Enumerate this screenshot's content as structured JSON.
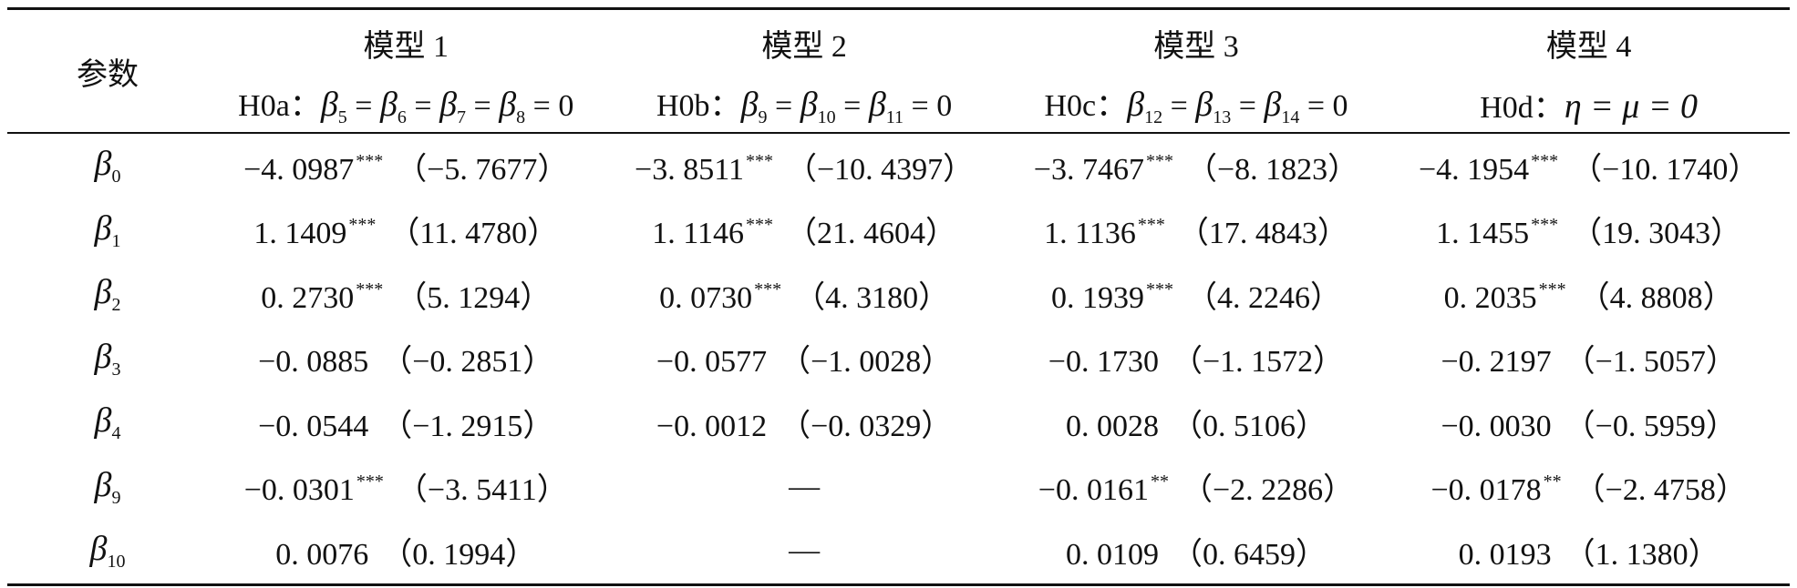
{
  "table": {
    "param_header": "参数",
    "models": [
      {
        "title": "模型 1",
        "hyp_label": "H0a：",
        "hyp_terms": [
          "5",
          "6",
          "7",
          "8"
        ],
        "hyp_symbol": "β",
        "hyp_eq": "= 0"
      },
      {
        "title": "模型 2",
        "hyp_label": "H0b：",
        "hyp_terms": [
          "9",
          "10",
          "11"
        ],
        "hyp_symbol": "β",
        "hyp_eq": "= 0"
      },
      {
        "title": "模型 3",
        "hyp_label": "H0c：",
        "hyp_terms": [
          "12",
          "13",
          "14"
        ],
        "hyp_symbol": "β",
        "hyp_eq": "= 0"
      },
      {
        "title": "模型 4",
        "hyp_label": "H0d：",
        "hyp_greek": "η = μ = 0"
      }
    ],
    "rows": [
      {
        "sym": "β",
        "sub": "0",
        "cells": [
          {
            "coef": "−4. 0987",
            "stars": "***",
            "t": "（−5. 7677）"
          },
          {
            "coef": "−3. 8511",
            "stars": "***",
            "t": "（−10. 4397）"
          },
          {
            "coef": "−3. 7467",
            "stars": "***",
            "t": "（−8. 1823）"
          },
          {
            "coef": "−4. 1954",
            "stars": "***",
            "t": "（−10. 1740）"
          }
        ]
      },
      {
        "sym": "β",
        "sub": "1",
        "cells": [
          {
            "coef": "1. 1409",
            "stars": "***",
            "t": "（11. 4780）"
          },
          {
            "coef": "1. 1146",
            "stars": "***",
            "t": "（21. 4604）"
          },
          {
            "coef": "1. 1136",
            "stars": "***",
            "t": "（17. 4843）"
          },
          {
            "coef": "1. 1455",
            "stars": "***",
            "t": "（19. 3043）"
          }
        ]
      },
      {
        "sym": "β",
        "sub": "2",
        "cells": [
          {
            "coef": "0. 2730",
            "stars": "***",
            "t": "（5. 1294）"
          },
          {
            "coef": "0. 0730",
            "stars": "***",
            "t": "（4. 3180）"
          },
          {
            "coef": "0. 1939",
            "stars": "***",
            "t": "（4. 2246）"
          },
          {
            "coef": "0. 2035",
            "stars": "***",
            "t": "（4. 8808）"
          }
        ]
      },
      {
        "sym": "β",
        "sub": "3",
        "cells": [
          {
            "coef": "−0. 0885",
            "stars": "",
            "t": "（−0. 2851）"
          },
          {
            "coef": "−0. 0577",
            "stars": "",
            "t": "（−1. 0028）"
          },
          {
            "coef": "−0. 1730",
            "stars": "",
            "t": "（−1. 1572）"
          },
          {
            "coef": "−0. 2197",
            "stars": "",
            "t": "（−1. 5057）"
          }
        ]
      },
      {
        "sym": "β",
        "sub": "4",
        "cells": [
          {
            "coef": "−0. 0544",
            "stars": "",
            "t": "（−1. 2915）"
          },
          {
            "coef": "−0. 0012",
            "stars": "",
            "t": "（−0. 0329）"
          },
          {
            "coef": "0. 0028",
            "stars": "",
            "t": "（0. 5106）"
          },
          {
            "coef": "−0. 0030",
            "stars": "",
            "t": "（−0. 5959）"
          }
        ]
      },
      {
        "sym": "β",
        "sub": "9",
        "cells": [
          {
            "coef": "−0. 0301",
            "stars": "***",
            "t": "（−3. 5411）"
          },
          {
            "coef": "—",
            "stars": "",
            "t": ""
          },
          {
            "coef": "−0. 0161",
            "stars": "**",
            "t": "（−2. 2286）"
          },
          {
            "coef": "−0. 0178",
            "stars": "**",
            "t": "（−2. 4758）"
          }
        ]
      },
      {
        "sym": "β",
        "sub": "10",
        "cells": [
          {
            "coef": "0. 0076",
            "stars": "",
            "t": "（0. 1994）"
          },
          {
            "coef": "—",
            "stars": "",
            "t": ""
          },
          {
            "coef": "0. 0109",
            "stars": "",
            "t": "（0. 6459）"
          },
          {
            "coef": "0. 0193",
            "stars": "",
            "t": "（1. 1380）"
          }
        ]
      }
    ]
  }
}
